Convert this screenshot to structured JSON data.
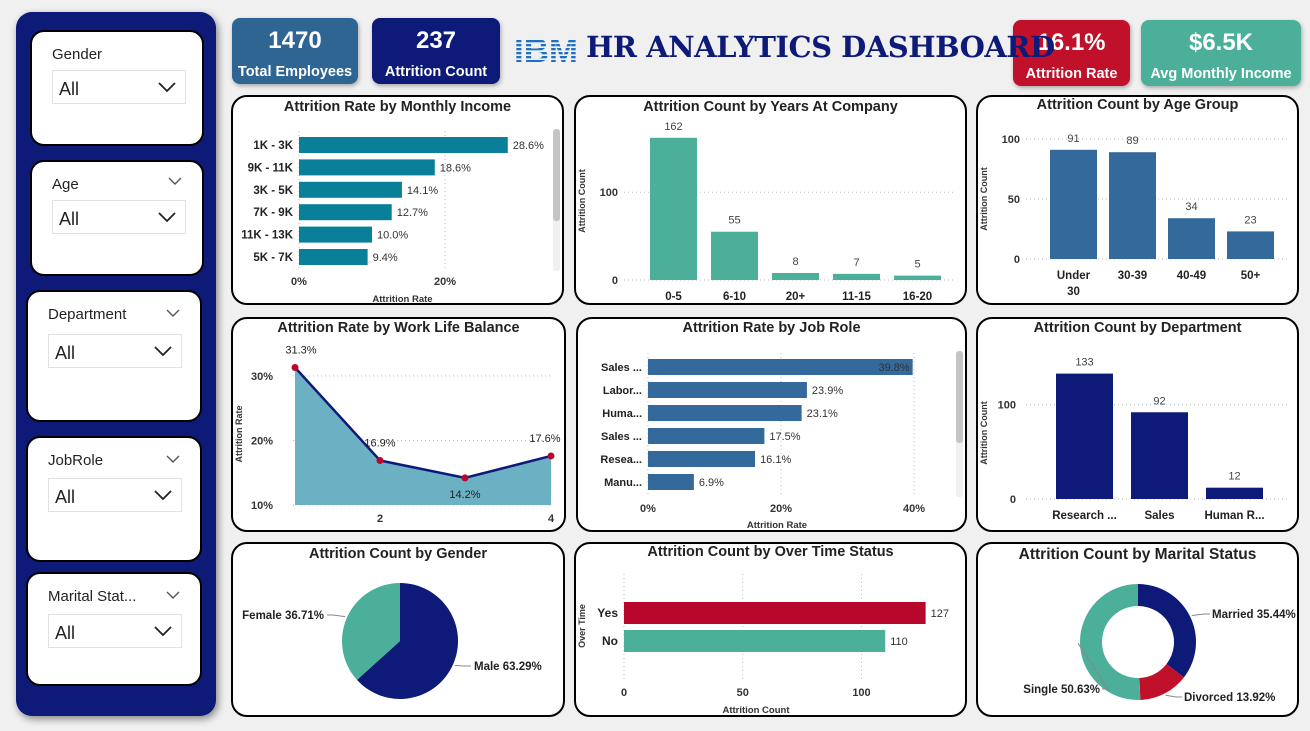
{
  "slicers": [
    {
      "title": "Gender",
      "value": "All"
    },
    {
      "title": "Age",
      "value": "All"
    },
    {
      "title": "Department",
      "value": "All"
    },
    {
      "title": "JobRole",
      "value": "All"
    },
    {
      "title": "Marital Stat...",
      "value": "All"
    }
  ],
  "kpis": {
    "total_employees": {
      "value": "1470",
      "label": "Total Employees",
      "color": "#2e6593"
    },
    "attrition_count": {
      "value": "237",
      "label": "Attrition Count",
      "color": "#0d1a78"
    },
    "attrition_rate": {
      "value": "16.1%",
      "label": "Attrition Rate",
      "color": "#c0102a"
    },
    "avg_income": {
      "value": "$6.5K",
      "label": "Avg Monthly Income",
      "color": "#4caf9a"
    }
  },
  "header": {
    "logo_text": "IBM",
    "title": "HR ANALYTICS DASHBOARD"
  },
  "colors": {
    "teal_dark": "#0a7f9a",
    "green": "#4caf9a",
    "steel": "#346a9b",
    "navy": "#0d1a78",
    "red": "#b7082c",
    "area": "#6cb0c3"
  },
  "chart_data": [
    {
      "id": "income",
      "type": "bar",
      "orientation": "horizontal",
      "title": "Attrition Rate by Monthly Income",
      "categories": [
        "1K - 3K",
        "9K - 11K",
        "3K - 5K",
        "7K - 9K",
        "11K - 13K",
        "5K - 7K"
      ],
      "values": [
        28.6,
        18.6,
        14.1,
        12.7,
        10.0,
        9.4
      ],
      "data_labels": [
        "28.6%",
        "18.6%",
        "14.1%",
        "12.7%",
        "10.0%",
        "9.4%"
      ],
      "xlabel": "Attrition Rate",
      "xticks": [
        "0%",
        "20%"
      ],
      "xlim": [
        0,
        30
      ]
    },
    {
      "id": "years",
      "type": "bar",
      "title": "Attrition Count by Years At Company",
      "categories": [
        "0-5",
        "6-10",
        "20+",
        "11-15",
        "16-20"
      ],
      "values": [
        162,
        55,
        8,
        7,
        5
      ],
      "ylabel": "Attrition Count",
      "yticks": [
        "0",
        "100"
      ],
      "ylim": [
        0,
        180
      ]
    },
    {
      "id": "age",
      "type": "bar",
      "title": "Attrition Count by Age Group",
      "categories": [
        "Under 30",
        "30-39",
        "40-49",
        "50+"
      ],
      "values": [
        91,
        89,
        34,
        23
      ],
      "ylabel": "Attrition Count",
      "yticks": [
        "0",
        "50",
        "100"
      ],
      "ylim": [
        0,
        100
      ]
    },
    {
      "id": "wlb",
      "type": "area",
      "title": "Attrition Rate by Work Life Balance",
      "x": [
        1,
        2,
        3,
        4
      ],
      "values": [
        31.3,
        16.9,
        14.2,
        17.6
      ],
      "data_labels": [
        "31.3%",
        "16.9%",
        "14.2%",
        "17.6%"
      ],
      "xticks": [
        "2",
        "4"
      ],
      "yticks": [
        "10%",
        "20%",
        "30%"
      ],
      "ylabel": "Attrition Rate",
      "ylim": [
        10,
        32
      ]
    },
    {
      "id": "jobrole",
      "type": "bar",
      "orientation": "horizontal",
      "title": "Attrition Rate by Job Role",
      "categories": [
        "Sales ...",
        "Labor...",
        "Huma...",
        "Sales ...",
        "Resea...",
        "Manu..."
      ],
      "values": [
        39.8,
        23.9,
        23.1,
        17.5,
        16.1,
        6.9
      ],
      "data_labels": [
        "39.8%",
        "23.9%",
        "23.1%",
        "17.5%",
        "16.1%",
        "6.9%"
      ],
      "xlabel": "Attrition Rate",
      "xticks": [
        "0%",
        "20%",
        "40%"
      ],
      "xlim": [
        0,
        40
      ]
    },
    {
      "id": "dept",
      "type": "bar",
      "title": "Attrition Count by Department",
      "categories": [
        "Research ...",
        "Sales",
        "Human R..."
      ],
      "values": [
        133,
        92,
        12
      ],
      "ylabel": "Attrition Count",
      "yticks": [
        "0",
        "100"
      ],
      "ylim": [
        0,
        140
      ]
    },
    {
      "id": "gender",
      "type": "pie",
      "title": "Attrition Count by Gender",
      "slices": [
        {
          "name": "Male",
          "label": "Male 63.29%",
          "value": 63.29,
          "color": "#0d1a78"
        },
        {
          "name": "Female",
          "label": "Female 36.71%",
          "value": 36.71,
          "color": "#4caf9a"
        }
      ]
    },
    {
      "id": "overtime",
      "type": "bar",
      "orientation": "horizontal",
      "title": "Attrition Count by Over Time Status",
      "categories": [
        "Yes",
        "No"
      ],
      "values": [
        127,
        110
      ],
      "data_labels": [
        "127",
        "110"
      ],
      "xlabel": "Attrition Count",
      "ylabel": "Over Time",
      "xticks": [
        "0",
        "50",
        "100"
      ],
      "xlim": [
        0,
        128
      ]
    },
    {
      "id": "marital",
      "type": "pie",
      "donut": true,
      "title": "Attrition Count by Marital Status",
      "slices": [
        {
          "name": "Married",
          "label": "Married 35.44%",
          "value": 35.44,
          "color": "#0d1a78"
        },
        {
          "name": "Divorced",
          "label": "Divorced 13.92%",
          "value": 13.92,
          "color": "#c0102a"
        },
        {
          "name": "Single",
          "label": "Single 50.63%",
          "value": 50.63,
          "color": "#4caf9a"
        }
      ]
    }
  ]
}
